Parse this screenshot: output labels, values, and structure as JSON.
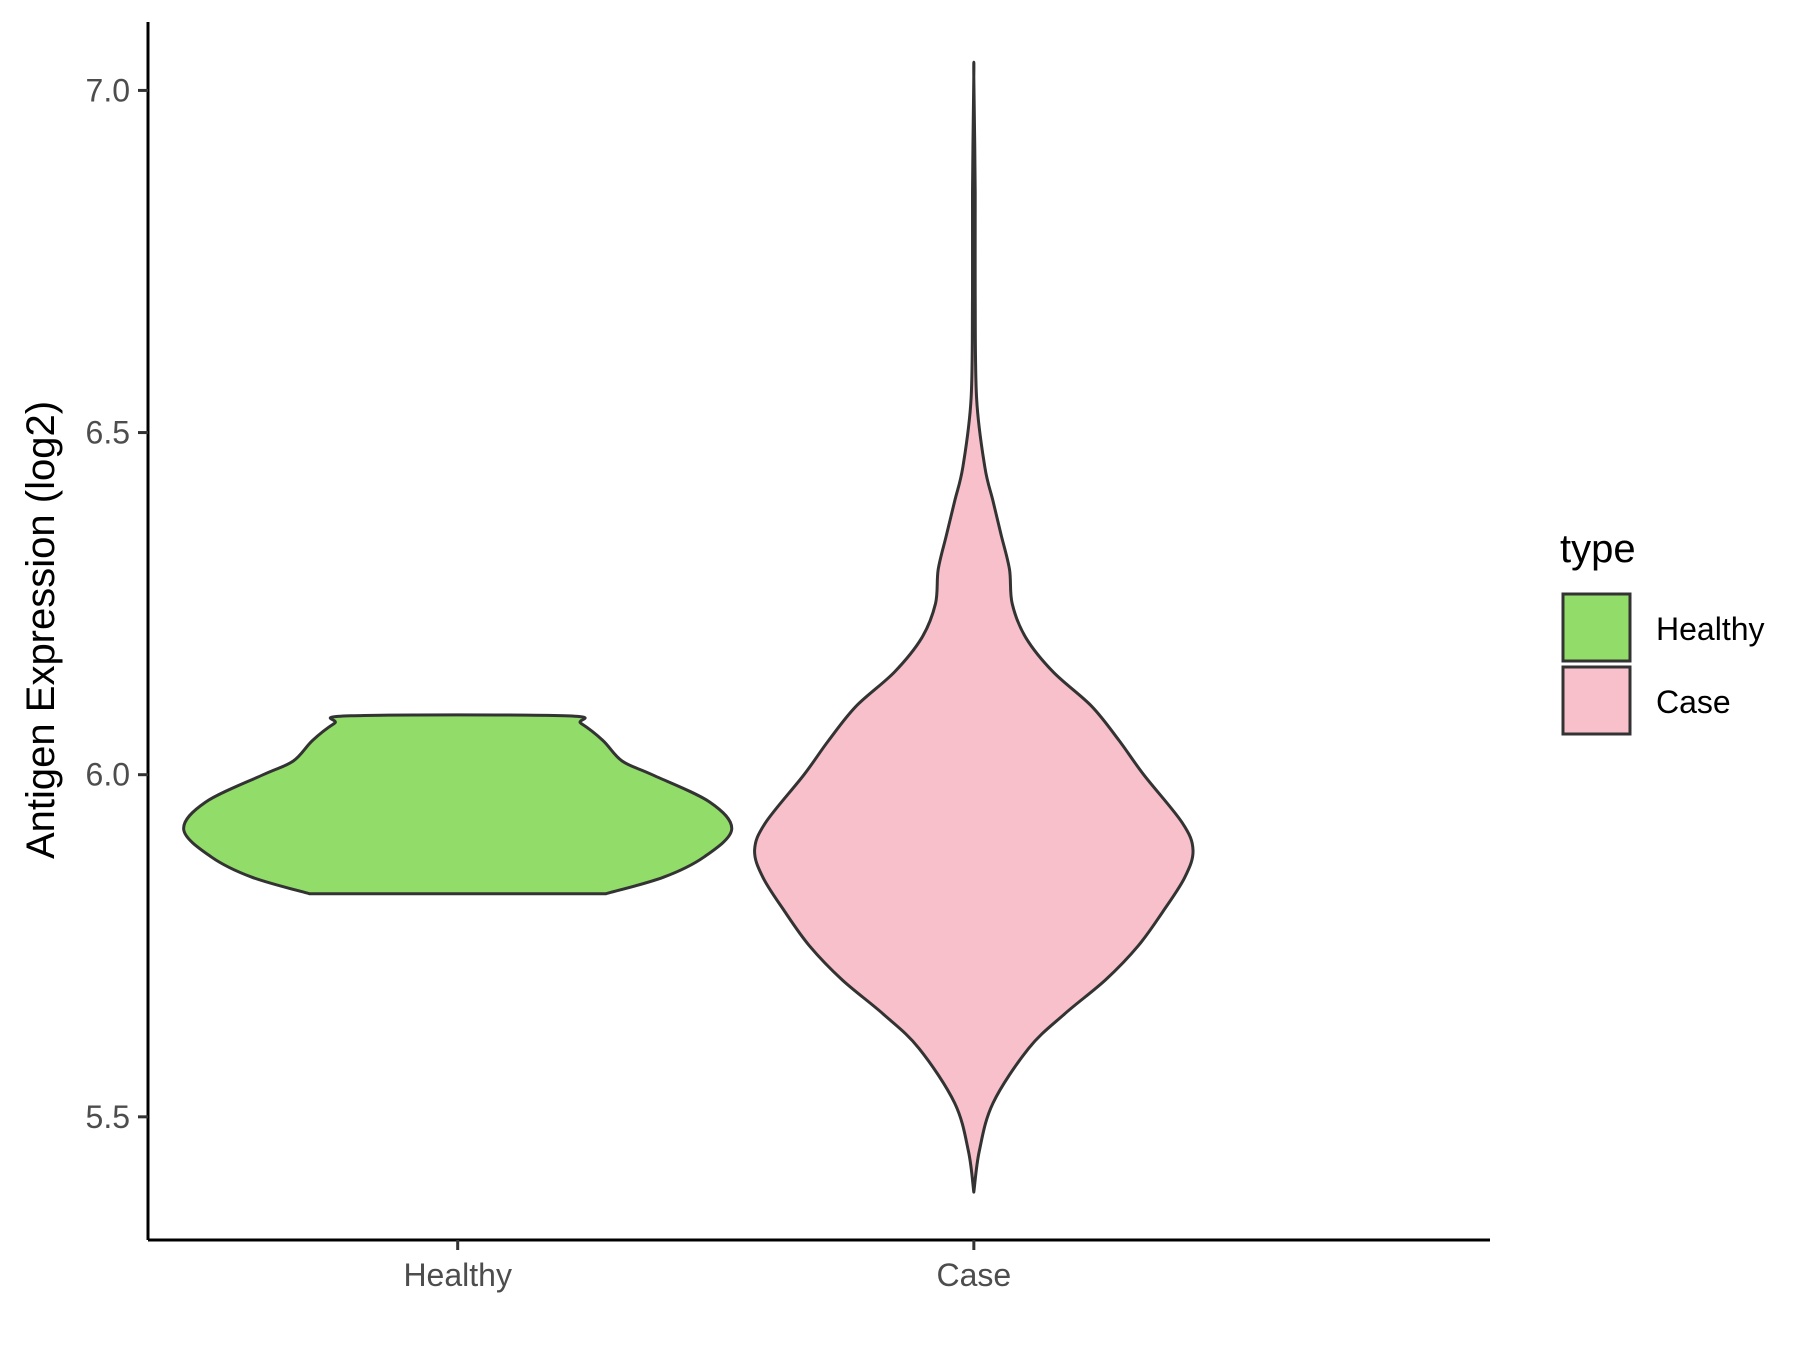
{
  "chart_data": {
    "type": "violin",
    "title": "",
    "xlabel": "",
    "ylabel": "Antigen Expression (log2)",
    "ylim": [
      5.32,
      7.1
    ],
    "yticks": [
      "5.5",
      "6.0",
      "6.5",
      "7.0"
    ],
    "categories": [
      "Healthy",
      "Case"
    ],
    "grid": false,
    "legend": {
      "title": "type",
      "position": "right",
      "entries": [
        {
          "label": "Healthy",
          "color": "#92dc6a"
        },
        {
          "label": "Case",
          "color": "#f7c0cb"
        }
      ]
    },
    "series": [
      {
        "category": "Healthy",
        "color": "#92dc6a",
        "min": 5.826,
        "max": 6.086,
        "density_profile": [
          {
            "y": 5.826,
            "half_width": 0.54
          },
          {
            "y": 5.85,
            "half_width": 0.75
          },
          {
            "y": 5.88,
            "half_width": 0.9
          },
          {
            "y": 5.92,
            "half_width": 1.0
          },
          {
            "y": 5.96,
            "half_width": 0.92
          },
          {
            "y": 6.0,
            "half_width": 0.71
          },
          {
            "y": 6.02,
            "half_width": 0.6
          },
          {
            "y": 6.05,
            "half_width": 0.53
          },
          {
            "y": 6.075,
            "half_width": 0.45
          },
          {
            "y": 6.086,
            "half_width": 0.39
          }
        ]
      },
      {
        "category": "Case",
        "color": "#f7c0cb",
        "min": 5.39,
        "max": 7.02,
        "density_profile": [
          {
            "y": 5.39,
            "half_width": 0.0
          },
          {
            "y": 5.45,
            "half_width": 0.02
          },
          {
            "y": 5.52,
            "half_width": 0.07
          },
          {
            "y": 5.6,
            "half_width": 0.2
          },
          {
            "y": 5.65,
            "half_width": 0.33
          },
          {
            "y": 5.7,
            "half_width": 0.48
          },
          {
            "y": 5.75,
            "half_width": 0.6
          },
          {
            "y": 5.8,
            "half_width": 0.69
          },
          {
            "y": 5.85,
            "half_width": 0.77
          },
          {
            "y": 5.89,
            "half_width": 0.8
          },
          {
            "y": 5.93,
            "half_width": 0.76
          },
          {
            "y": 6.0,
            "half_width": 0.62
          },
          {
            "y": 6.05,
            "half_width": 0.53
          },
          {
            "y": 6.1,
            "half_width": 0.43
          },
          {
            "y": 6.15,
            "half_width": 0.29
          },
          {
            "y": 6.2,
            "half_width": 0.19
          },
          {
            "y": 6.25,
            "half_width": 0.14
          },
          {
            "y": 6.3,
            "half_width": 0.13
          },
          {
            "y": 6.35,
            "half_width": 0.1
          },
          {
            "y": 6.4,
            "half_width": 0.07
          },
          {
            "y": 6.45,
            "half_width": 0.04
          },
          {
            "y": 6.55,
            "half_width": 0.01
          },
          {
            "y": 6.7,
            "half_width": 0.005
          },
          {
            "y": 6.85,
            "half_width": 0.005
          },
          {
            "y": 7.02,
            "half_width": 0.0
          }
        ]
      }
    ]
  }
}
